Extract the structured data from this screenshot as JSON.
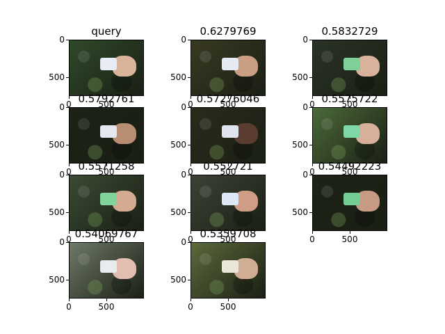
{
  "chart_data": {
    "type": "image-grid",
    "grid": {
      "rows": 4,
      "cols": 3
    },
    "x_ticks": [
      0,
      500
    ],
    "y_ticks": [
      500
    ],
    "panels": [
      {
        "title": "query",
        "bg": "#2f4a2a",
        "card": "#e8ecf4",
        "hand": "#d9b49a"
      },
      {
        "title": "0.6279769",
        "bg": "#3a3a22",
        "card": "#e6eaf2",
        "hand": "#c99e82"
      },
      {
        "title": "0.5832729",
        "bg": "#2a3327",
        "card": "#7fcf9a",
        "hand": "#d8b29b"
      },
      {
        "title": "0.5792761",
        "bg": "#1c2216",
        "card": "#e3e7f0",
        "hand": "#b88d72"
      },
      {
        "title": "0.57276046",
        "bg": "#2a2b1b",
        "card": "#e0e4ee",
        "hand": "#5a3c30"
      },
      {
        "title": "0.5575722",
        "bg": "#4c6a3a",
        "card": "#7fd6a7",
        "hand": "#d7b09a"
      },
      {
        "title": "0.5571258",
        "bg": "#3b4b34",
        "card": "#7fd39b",
        "hand": "#d5aa92"
      },
      {
        "title": "0.552721",
        "bg": "#3c4336",
        "card": "#dce8f6",
        "hand": "#cf9d86"
      },
      {
        "title": "0.54492223",
        "bg": "#1d2216",
        "card": "#74cc95",
        "hand": "#c79a84"
      },
      {
        "title": "0.54069767",
        "bg": "#6f7a68",
        "card": "#e9ecef",
        "hand": "#e2bdb0"
      },
      {
        "title": "0.5359708",
        "bg": "#5c6a3c",
        "card": "#ebe7d8",
        "hand": "#d1ad93"
      }
    ]
  }
}
